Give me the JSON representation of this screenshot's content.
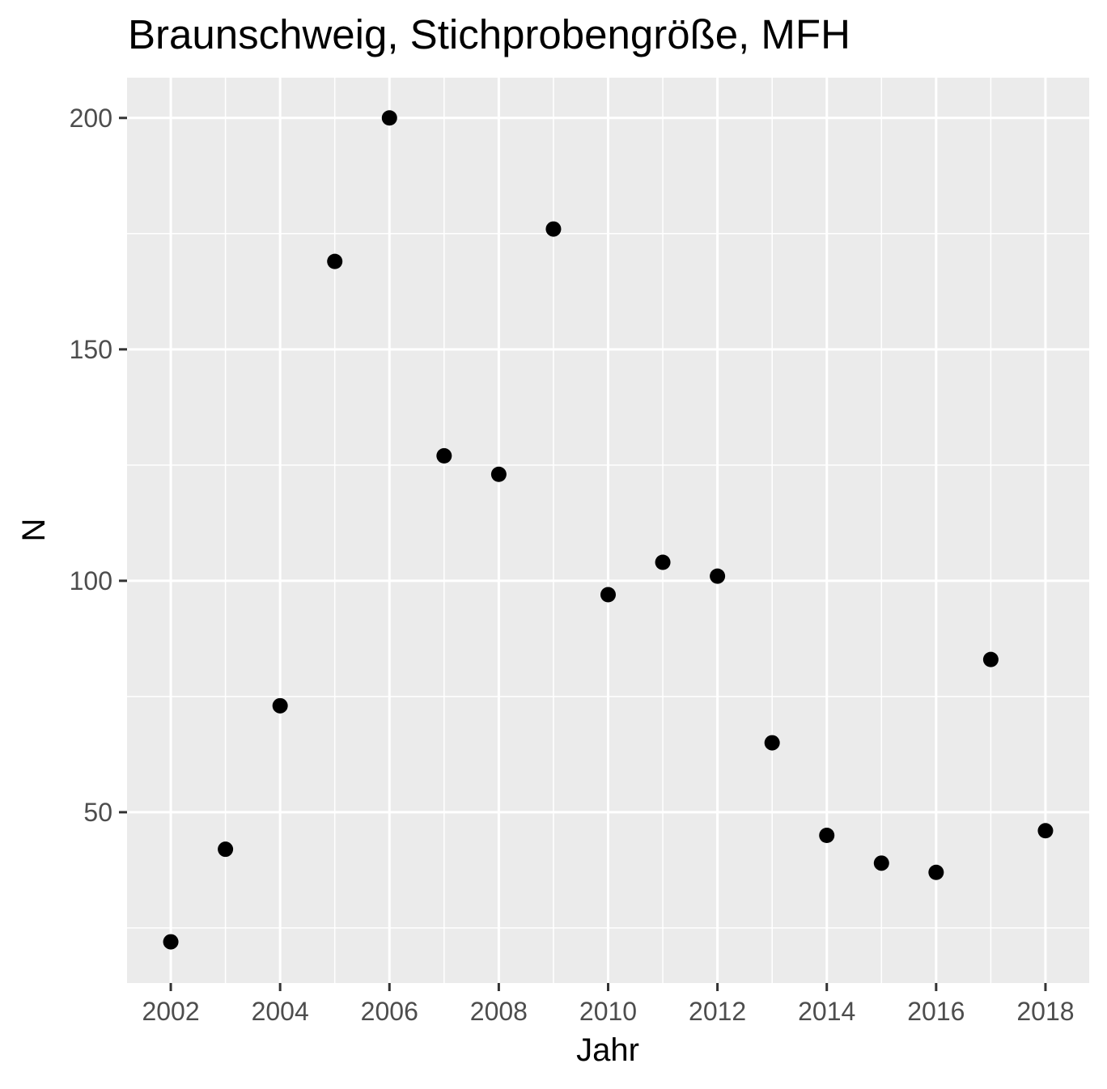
{
  "chart_data": {
    "type": "scatter",
    "title": "Braunschweig, Stichprobengröße, MFH",
    "xlabel": "Jahr",
    "ylabel": "N",
    "x": [
      2002,
      2003,
      2004,
      2005,
      2006,
      2007,
      2008,
      2009,
      2010,
      2011,
      2012,
      2013,
      2014,
      2015,
      2016,
      2017,
      2018
    ],
    "y": [
      22,
      42,
      73,
      169,
      200,
      127,
      123,
      176,
      97,
      104,
      101,
      65,
      45,
      39,
      37,
      83,
      46
    ],
    "xlim": [
      2001.2,
      2018.8
    ],
    "ylim": [
      13.1,
      208.7
    ],
    "xticks": [
      2002,
      2004,
      2006,
      2008,
      2010,
      2012,
      2014,
      2016,
      2018
    ],
    "yticks": [
      50,
      100,
      150,
      200
    ],
    "grid": true,
    "colors": {
      "panel": "#ebebeb",
      "grid": "#ffffff",
      "point": "#000000"
    }
  }
}
